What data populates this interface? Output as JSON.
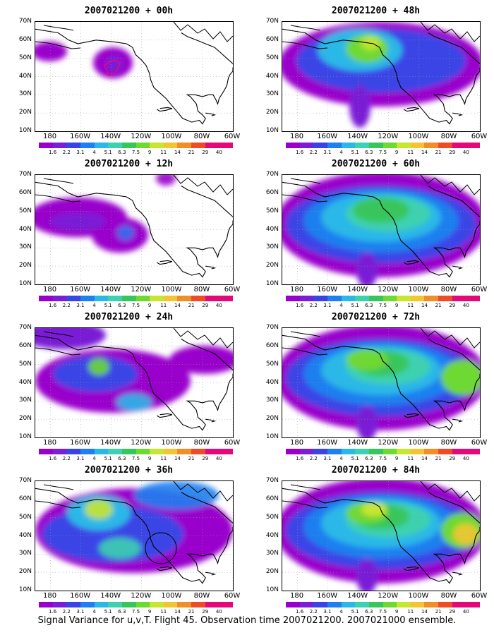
{
  "caption": "Signal Variance for u,v,T. Flight 45. Observation time 2007021200. 2007021000 ensemble.",
  "latitude_labels": [
    "70N",
    "60N",
    "50N",
    "40N",
    "30N",
    "20N",
    "10N"
  ],
  "longitude_labels": [
    "180",
    "160W",
    "140W",
    "120W",
    "100W",
    "80W",
    "60W"
  ],
  "colorbar": {
    "labels": [
      "1.6",
      "2.2",
      "3.1",
      "4",
      "5.1",
      "6.3",
      "7.5",
      "9",
      "11",
      "14",
      "21",
      "29",
      "40"
    ],
    "colors": [
      "#9900cc",
      "#7a1fd6",
      "#3a44e6",
      "#1f7ff0",
      "#29b8e8",
      "#3ed1b0",
      "#37c65c",
      "#6ed930",
      "#c7e62e",
      "#f2c531",
      "#f08e27",
      "#ee4c27",
      "#e5087a"
    ]
  },
  "panels": [
    {
      "title": "2007021200 + 00h",
      "level": 1
    },
    {
      "title": "2007021200 + 12h",
      "level": 2
    },
    {
      "title": "2007021200 + 24h",
      "level": 3
    },
    {
      "title": "2007021200 + 36h",
      "level": 4
    },
    {
      "title": "2007021200 + 48h",
      "level": 5
    },
    {
      "title": "2007021200 + 60h",
      "level": 6
    },
    {
      "title": "2007021200 + 72h",
      "level": 7
    },
    {
      "title": "2007021200 + 84h",
      "level": 8
    }
  ]
}
